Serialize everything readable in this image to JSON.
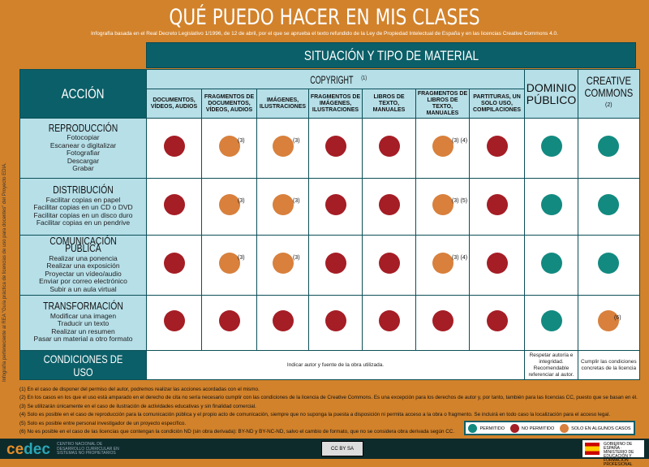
{
  "title": "QUÉ PUEDO HACER EN MIS CLASES",
  "subtitle": "Infografía basada en el Real Decreto Legislativo 1/1996, de 12 de abril, por el que se aprueba el texto refundido de la Ley de Propiedad Intelectual de España y en las licencias Creative Commons 4.0.",
  "side_note": "Infografía perteneciente al REA \"Guía práctica de licencias de uso para docentes\" del Proyecto EDIA.",
  "situacion": "SITUACIÓN Y TIPO DE MATERIAL",
  "accion": "ACCIÓN",
  "copyright": "COPYRIGHT",
  "copyright_note": "(1)",
  "columns": [
    "DOCUMENTOS, VÍDEOS, AUDIOS",
    "FRAGMENTOS DE DOCUMENTOS, VÍDEOS, AUDIOS",
    "IMÁGENES, ILUSTRACIONES",
    "FRAGMENTOS DE IMÁGENES, ILUSTRACIONES",
    "LIBROS DE TEXTO, MANUALES",
    "FRAGMENTOS DE LIBROS DE TEXTO, MANUALES",
    "PARTITURAS, UN SOLO USO, COMPILACIONES"
  ],
  "dominio": "DOMINIO PÚBLICO",
  "creative": "CREATIVE COMMONS",
  "creative_note": "(2)",
  "colors": {
    "permitido": "#128a80",
    "no_permitido": "#a51d25",
    "algunos": "#d8803c"
  },
  "rows": [
    {
      "title": "REPRODUCCIÓN",
      "items": [
        "Fotocopiar",
        "Escanear o digitalizar",
        "Fotografiar",
        "Descargar",
        "Grabar"
      ],
      "cells": [
        {
          "s": "no_permitido",
          "n": ""
        },
        {
          "s": "algunos",
          "n": "(3)"
        },
        {
          "s": "algunos",
          "n": "(3)"
        },
        {
          "s": "no_permitido",
          "n": ""
        },
        {
          "s": "no_permitido",
          "n": ""
        },
        {
          "s": "algunos",
          "n": "(3) (4)"
        },
        {
          "s": "no_permitido",
          "n": ""
        },
        {
          "s": "permitido",
          "n": ""
        },
        {
          "s": "permitido",
          "n": ""
        }
      ]
    },
    {
      "title": "DISTRIBUCIÓN",
      "items": [
        "Facilitar copias en papel",
        "Facilitar copias en un CD o DVD",
        "Facilitar copias en un disco duro",
        "Facilitar copias en un pendrive"
      ],
      "cells": [
        {
          "s": "no_permitido",
          "n": ""
        },
        {
          "s": "algunos",
          "n": "(3)"
        },
        {
          "s": "algunos",
          "n": "(3)"
        },
        {
          "s": "no_permitido",
          "n": ""
        },
        {
          "s": "no_permitido",
          "n": ""
        },
        {
          "s": "algunos",
          "n": "(3) (5)"
        },
        {
          "s": "no_permitido",
          "n": ""
        },
        {
          "s": "permitido",
          "n": ""
        },
        {
          "s": "permitido",
          "n": ""
        }
      ]
    },
    {
      "title": "COMUNICACIÓN PÚBLICA",
      "items": [
        "Realizar una ponencia",
        "Realizar una exposición",
        "Proyectar un vídeo/audio",
        "Enviar por correo electrónico",
        "Subir a un aula virtual"
      ],
      "cells": [
        {
          "s": "no_permitido",
          "n": ""
        },
        {
          "s": "algunos",
          "n": "(3)"
        },
        {
          "s": "algunos",
          "n": "(3)"
        },
        {
          "s": "no_permitido",
          "n": ""
        },
        {
          "s": "no_permitido",
          "n": ""
        },
        {
          "s": "algunos",
          "n": "(3) (4)"
        },
        {
          "s": "no_permitido",
          "n": ""
        },
        {
          "s": "permitido",
          "n": ""
        },
        {
          "s": "permitido",
          "n": ""
        }
      ]
    },
    {
      "title": "TRANSFORMACIÓN",
      "items": [
        "Modificar una imagen",
        "Traducir un texto",
        "Realizar un resumen",
        "Pasar un material a otro formato"
      ],
      "cells": [
        {
          "s": "no_permitido",
          "n": ""
        },
        {
          "s": "no_permitido",
          "n": ""
        },
        {
          "s": "no_permitido",
          "n": ""
        },
        {
          "s": "no_permitido",
          "n": ""
        },
        {
          "s": "no_permitido",
          "n": ""
        },
        {
          "s": "no_permitido",
          "n": ""
        },
        {
          "s": "no_permitido",
          "n": ""
        },
        {
          "s": "permitido",
          "n": ""
        },
        {
          "s": "algunos",
          "n": "(6)"
        }
      ]
    }
  ],
  "condiciones": {
    "label": "CONDICIONES DE USO",
    "copyright": "Indicar autor y fuente de la obra utilizada.",
    "dominio": "Respetar autoría e integridad. Recomendable referenciar al autor.",
    "creative": "Cumplir las condiciones concretas de la licencia"
  },
  "footnotes": [
    "(1) En el caso de disponer del permiso del autor, podremos realizar las acciones acordadas con el mismo.",
    "(2) En los casos en los que el uso está amparado en el derecho de cita no sería necesario cumplir con las condiciones de la licencia de Creative Commons. Es una excepción para los derechos de autor y, por tanto, también para las licencias CC, puesto que se basan en él.",
    "(3) Se utilizarán únicamente en el caso de ilustración de actividades educativas y sin finalidad comercial.",
    "(4) Solo es posible en el caso de reproducción para la comunicación pública y el propio acto de comunicación, siempre que no suponga la puesta a disposición ni permita acceso a la obra o fragmento. Se incluirá en todo caso la localización para el acceso legal.",
    "(5) Solo es posible entre personal investigador de un proyecto específico.",
    "(6) No es posible en el caso de las licencias que contengan la condición ND (sin obra derivada): BY-ND y BY-NC-ND, salvo el cambio de formato, que no se considera obra derivada según CC."
  ],
  "legend": {
    "permitido": "PERMITIDO",
    "no_permitido": "NO PERMITIDO",
    "algunos": "SOLO EN ALGUNOS CASOS"
  },
  "footer": {
    "logo": "cedec",
    "logo_text": "CENTRO NACIONAL DE DESARROLLO CURRICULAR EN SISTEMAS NO PROPIETARIOS",
    "cc": "CC BY SA",
    "gov": "GOBIERNO DE ESPAÑA · MINISTERIO DE EDUCACIÓN Y FORMACIÓN PROFESIONAL"
  }
}
